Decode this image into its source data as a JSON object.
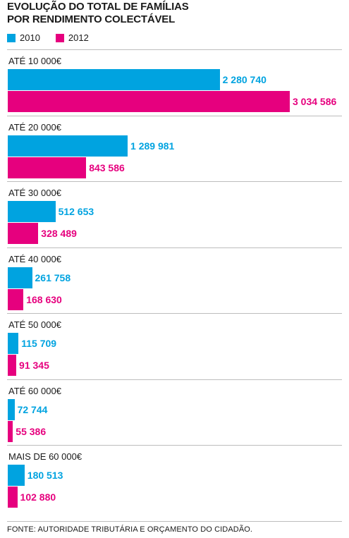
{
  "colors": {
    "s2010": "#00a3e0",
    "s2012": "#e6007e",
    "rule": "#bdbdbd"
  },
  "chart_data": {
    "type": "bar",
    "orientation": "horizontal",
    "title": "EVOLUÇÃO DO TOTAL DE FAMÍLIAS POR RENDIMENTO COLECTÁVEL",
    "title_lines": [
      "EVOLUÇÃO DO TOTAL DE FAMÍLIAS",
      "POR RENDIMENTO COLECTÁVEL"
    ],
    "legend_position": "top-left",
    "categories": [
      "ATÉ 10 000€",
      "ATÉ 20 000€",
      "ATÉ 30 000€",
      "ATÉ 40 000€",
      "ATÉ 50 000€",
      "ATÉ 60 000€",
      "MAIS DE 60 000€"
    ],
    "series": [
      {
        "name": "2010",
        "values": [
          2280740,
          1289981,
          512653,
          261758,
          115709,
          72744,
          180513
        ],
        "labels": [
          "2 280 740",
          "1 289 981",
          "512 653",
          "261 758",
          "115 709",
          "72 744",
          "180 513"
        ]
      },
      {
        "name": "2012",
        "values": [
          3034586,
          843586,
          328489,
          168630,
          91345,
          55386,
          102880
        ],
        "labels": [
          "3 034 586",
          "843 586",
          "328 489",
          "168 630",
          "91 345",
          "55 386",
          "102 880"
        ]
      }
    ],
    "xlim": [
      0,
      3034586
    ],
    "grid": false,
    "source": "FONTE: AUTORIDADE TRIBUTÁRIA E ORÇAMENTO DO CIDADÃO."
  }
}
